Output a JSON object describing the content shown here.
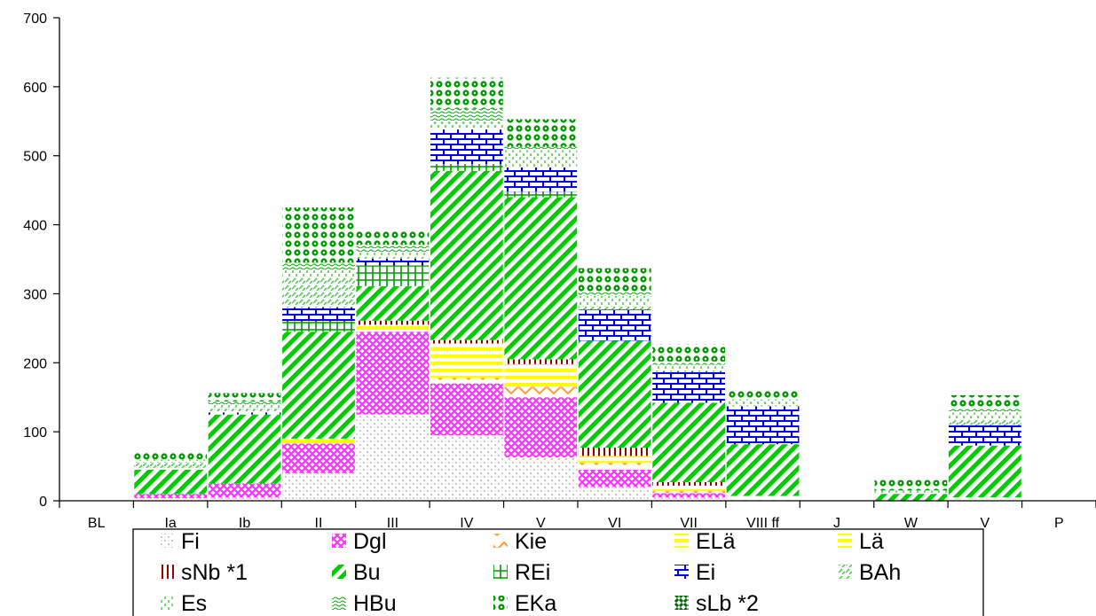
{
  "chart_data": {
    "type": "bar",
    "stacked": true,
    "title": "",
    "xlabel": "",
    "ylabel": "",
    "ylim": [
      0,
      700
    ],
    "yticks": [
      0,
      100,
      200,
      300,
      400,
      500,
      600,
      700
    ],
    "grid": false,
    "legend_position": "bottom",
    "categories": [
      "BL",
      "Ia",
      "Ib",
      "II",
      "III",
      "IV",
      "V",
      "VI",
      "VII",
      "VIII ff",
      "J",
      "W",
      "V",
      "P"
    ],
    "series": [
      {
        "name": "Fi",
        "pattern": "dots",
        "color": "#a0a0a0",
        "values": [
          0,
          4,
          5,
          40,
          125,
          95,
          63,
          20,
          5,
          2,
          0,
          0,
          2,
          0
        ]
      },
      {
        "name": "Dgl",
        "pattern": "crosshatch",
        "color": "#ff33ff",
        "values": [
          0,
          6,
          20,
          43,
          120,
          75,
          87,
          25,
          6,
          0,
          0,
          0,
          0,
          0
        ]
      },
      {
        "name": "Kie",
        "pattern": "zigzag",
        "color": "#ff9933",
        "values": [
          0,
          0,
          0,
          0,
          0,
          8,
          15,
          10,
          3,
          5,
          0,
          0,
          3,
          0
        ]
      },
      {
        "name": "ELä",
        "pattern": "hstripes",
        "color": "#ffff00",
        "values": [
          0,
          0,
          0,
          4,
          5,
          30,
          25,
          5,
          5,
          0,
          0,
          0,
          0,
          0
        ]
      },
      {
        "name": "Lä",
        "pattern": "hstripes",
        "color": "#ffff00",
        "values": [
          0,
          0,
          0,
          3,
          5,
          20,
          8,
          5,
          3,
          0,
          0,
          0,
          0,
          0
        ]
      },
      {
        "name": "sNb *1",
        "pattern": "vlines",
        "color": "#990000",
        "values": [
          0,
          0,
          0,
          0,
          6,
          5,
          7,
          12,
          5,
          0,
          0,
          0,
          0,
          0
        ]
      },
      {
        "name": "Bu",
        "pattern": "diagonal",
        "color": "#00cc00",
        "values": [
          0,
          35,
          100,
          155,
          50,
          245,
          235,
          155,
          115,
          75,
          0,
          10,
          75,
          0
        ]
      },
      {
        "name": "REi",
        "pattern": "grid",
        "color": "#009900",
        "values": [
          0,
          0,
          0,
          15,
          30,
          10,
          8,
          0,
          0,
          0,
          0,
          0,
          0,
          0
        ]
      },
      {
        "name": "Ei",
        "pattern": "brick",
        "color": "#0000ff",
        "values": [
          0,
          0,
          3,
          20,
          10,
          50,
          35,
          45,
          45,
          55,
          0,
          0,
          30,
          0
        ]
      },
      {
        "name": "BAh",
        "pattern": "dashes",
        "color": "#33cc33",
        "values": [
          0,
          10,
          5,
          45,
          5,
          5,
          0,
          5,
          5,
          0,
          0,
          0,
          8,
          0
        ]
      },
      {
        "name": "Es",
        "pattern": "ticks",
        "color": "#33cc33",
        "values": [
          0,
          5,
          6,
          10,
          5,
          5,
          25,
          15,
          5,
          10,
          0,
          5,
          10,
          0
        ]
      },
      {
        "name": "HBu",
        "pattern": "waves",
        "color": "#00aa00",
        "values": [
          0,
          0,
          5,
          10,
          10,
          20,
          5,
          5,
          5,
          0,
          0,
          0,
          5,
          0
        ]
      },
      {
        "name": "EKa",
        "pattern": "circles",
        "color": "#009900",
        "values": [
          0,
          10,
          12,
          80,
          20,
          45,
          40,
          35,
          25,
          15,
          0,
          15,
          20,
          0
        ]
      },
      {
        "name": "sLb *2",
        "pattern": "clovers",
        "color": "#006600",
        "values": [
          0,
          0,
          0,
          0,
          0,
          0,
          0,
          0,
          0,
          0,
          0,
          0,
          0,
          0
        ]
      }
    ]
  }
}
